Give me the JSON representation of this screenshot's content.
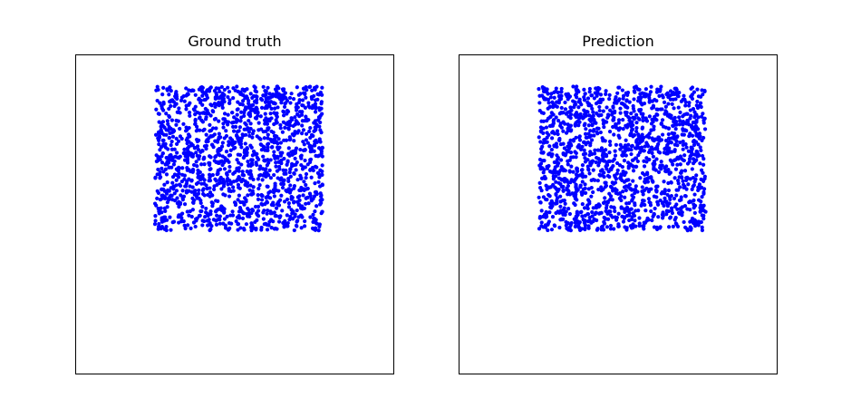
{
  "figure": {
    "marker_color": "#0000ff",
    "frame_color": "#000000",
    "background": "#ffffff"
  },
  "chart_data": [
    {
      "type": "scatter",
      "title": "Ground truth",
      "xlabel": "",
      "ylabel": "",
      "xlim": [
        0,
        1
      ],
      "ylim": [
        0,
        1
      ],
      "grid": false,
      "axes_ticks": false,
      "legend": false,
      "point_count": 1600,
      "point_distribution": "uniform random",
      "x_range": [
        0.25,
        0.775
      ],
      "y_range": [
        0.45,
        0.9
      ],
      "seed": 11
    },
    {
      "type": "scatter",
      "title": "Prediction",
      "xlabel": "",
      "ylabel": "",
      "xlim": [
        0,
        1
      ],
      "ylim": [
        0,
        1
      ],
      "grid": false,
      "axes_ticks": false,
      "legend": false,
      "point_count": 1600,
      "point_distribution": "uniform random",
      "x_range": [
        0.25,
        0.775
      ],
      "y_range": [
        0.45,
        0.9
      ],
      "seed": 29
    }
  ]
}
